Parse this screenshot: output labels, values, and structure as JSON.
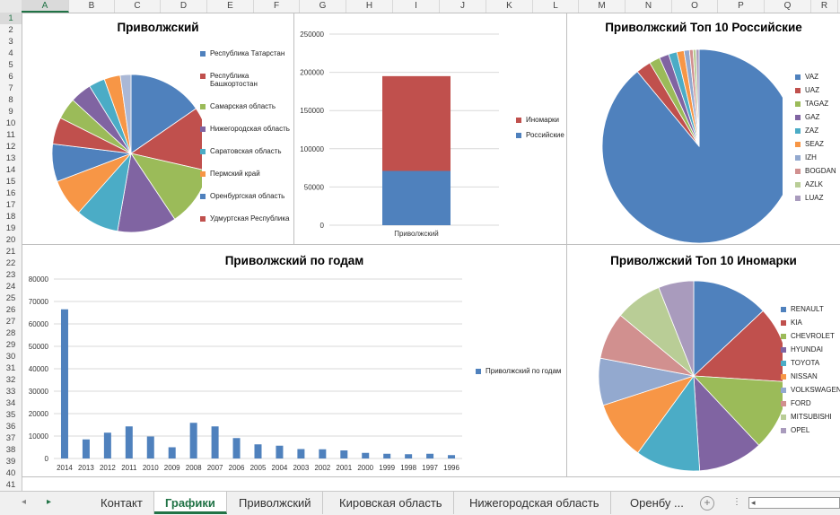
{
  "grid": {
    "columns": [
      "A",
      "B",
      "C",
      "D",
      "E",
      "F",
      "G",
      "H",
      "I",
      "J",
      "K",
      "L",
      "M",
      "N",
      "O",
      "P",
      "Q",
      "R"
    ],
    "active_column": "A",
    "rows": [
      "1",
      "2",
      "3",
      "4",
      "5",
      "6",
      "7",
      "8",
      "9",
      "10",
      "11",
      "12",
      "13",
      "14",
      "15",
      "16",
      "17",
      "18",
      "19",
      "20",
      "21",
      "22",
      "23",
      "24",
      "25",
      "26",
      "27",
      "28",
      "29",
      "30",
      "31",
      "32",
      "33",
      "34",
      "35",
      "36",
      "37",
      "38",
      "39",
      "40",
      "41"
    ],
    "active_row": "1"
  },
  "charts": {
    "pie_regions": {
      "title": "Приволжский",
      "legend": [
        "Республика Татарстан",
        "Республика Башкортостан",
        "Самарская область",
        "Нижегородская область",
        "Саратовская область",
        "Пермский край",
        "Оренбургская область",
        "Удмуртская Республика"
      ]
    },
    "stacked": {
      "category": "Приволжский",
      "legend": [
        "Иномарки",
        "Российские"
      ]
    },
    "pie_rus": {
      "title": "Приволжский Топ 10 Российские",
      "legend": [
        "VAZ",
        "UAZ",
        "TAGAZ",
        "GAZ",
        "ZAZ",
        "SEAZ",
        "IZH",
        "BOGDAN",
        "AZLK",
        "LUAZ"
      ]
    },
    "years": {
      "title": "Приволжский по годам",
      "legend": [
        "Приволжский по годам"
      ]
    },
    "pie_foreign": {
      "title": "Приволжский Топ 10 Иномарки",
      "legend": [
        "RENAULT",
        "KIA",
        "CHEVROLET",
        "HYUNDAI",
        "TOYOTA",
        "NISSAN",
        "VOLKSWAGEN",
        "FORD",
        "MITSUBISHI",
        "OPEL"
      ]
    }
  },
  "chart_data": [
    {
      "type": "pie",
      "title": "Приволжский",
      "labels": [
        "Республика Татарстан",
        "Республика Башкортостан",
        "Самарская область",
        "Нижегородская область",
        "Саратовская область",
        "Пермский край",
        "Оренбургская область",
        "Удмуртская Республика",
        "",
        "",
        "",
        "",
        ""
      ],
      "values": [
        14,
        12,
        11,
        11,
        8,
        7,
        7,
        5,
        4,
        4,
        3,
        3,
        2
      ],
      "colors": [
        "#4f81bd",
        "#c0504d",
        "#9bbb59",
        "#8064a2",
        "#4bacc6",
        "#f79646",
        "#4f81bd",
        "#c0504d",
        "#9bbb59",
        "#8064a2",
        "#4bacc6",
        "#f79646",
        "#aab8d6",
        "#d9a3a3"
      ]
    },
    {
      "type": "bar",
      "stacked": true,
      "categories": [
        "Приволжский"
      ],
      "series": [
        {
          "name": "Российские",
          "values": [
            71000
          ],
          "color": "#4f81bd"
        },
        {
          "name": "Иномарки",
          "values": [
            124000
          ],
          "color": "#c0504d"
        }
      ],
      "ylim": [
        0,
        250000
      ],
      "yticks": [
        "0",
        "50000",
        "100000",
        "150000",
        "200000",
        "250000"
      ]
    },
    {
      "type": "pie",
      "title": "Приволжский Топ 10 Российские",
      "labels": [
        "VAZ",
        "UAZ",
        "TAGAZ",
        "GAZ",
        "ZAZ",
        "SEAZ",
        "IZH",
        "BOGDAN",
        "AZLK",
        "LUAZ"
      ],
      "values": [
        89,
        2.5,
        1.8,
        1.6,
        1.4,
        1.2,
        0.9,
        0.6,
        0.5,
        0.5
      ],
      "colors": [
        "#4f81bd",
        "#c0504d",
        "#9bbb59",
        "#8064a2",
        "#4bacc6",
        "#f79646",
        "#93a9cf",
        "#d1908f",
        "#b9cd96",
        "#a99bbd"
      ]
    },
    {
      "type": "bar",
      "title": "Приволжский по годам",
      "categories": [
        "2014",
        "2013",
        "2012",
        "2011",
        "2010",
        "2009",
        "2008",
        "2007",
        "2006",
        "2005",
        "2004",
        "2003",
        "2002",
        "2001",
        "2000",
        "1999",
        "1998",
        "1997",
        "1996"
      ],
      "series": [
        {
          "name": "Приволжский по годам",
          "values": [
            66500,
            8500,
            11500,
            14300,
            9800,
            5000,
            15900,
            14300,
            9100,
            6300,
            5700,
            4200,
            4100,
            3600,
            2500,
            2100,
            1900,
            2100,
            1500
          ],
          "color": "#4f81bd"
        }
      ],
      "ylim": [
        0,
        80000
      ],
      "yticks": [
        "0",
        "10000",
        "20000",
        "30000",
        "40000",
        "50000",
        "60000",
        "70000",
        "80000"
      ]
    },
    {
      "type": "pie",
      "title": "Приволжский Топ 10 Иномарки",
      "labels": [
        "RENAULT",
        "KIA",
        "CHEVROLET",
        "HYUNDAI",
        "TOYOTA",
        "NISSAN",
        "VOLKSWAGEN",
        "FORD",
        "MITSUBISHI",
        "OPEL"
      ],
      "values": [
        13,
        13,
        12,
        11,
        11,
        10,
        8,
        8,
        8,
        6
      ],
      "colors": [
        "#4f81bd",
        "#c0504d",
        "#9bbb59",
        "#8064a2",
        "#4bacc6",
        "#f79646",
        "#93a9cf",
        "#d1908f",
        "#b9cd96",
        "#a99bbd"
      ]
    }
  ],
  "tabs": {
    "items": [
      "Контакт",
      "Графики",
      "Приволжский",
      "Кировская область",
      "Нижегородская область",
      "Оренбу ..."
    ],
    "active_index": 1,
    "add_symbol": "+"
  }
}
